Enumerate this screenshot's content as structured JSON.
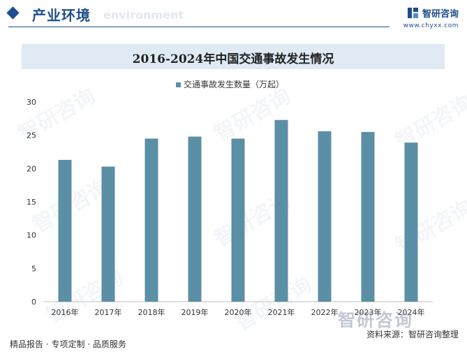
{
  "header": {
    "section_title": "产业环境",
    "section_subtitle": "environment",
    "brand_name": "智研咨询",
    "brand_url": "www.chyxx.com"
  },
  "watermark_text": "智研咨询",
  "footer": {
    "left_text": "精品报告 · 专项定制 · 品质服务",
    "source_text": "资料来源：智研咨询整理"
  },
  "colors": {
    "accent": "#1f4e8c",
    "bar": "#5b8fa6",
    "title_band": "#dfeaf5"
  },
  "chart_data": {
    "type": "bar",
    "title": "2016-2024年中国交通事故发生情况",
    "categories": [
      "2016年",
      "2017年",
      "2018年",
      "2019年",
      "2020年",
      "2021年",
      "2022年",
      "2023年",
      "2024年"
    ],
    "series": [
      {
        "name": "交通事故发生数量（万起）",
        "values": [
          21.3,
          20.3,
          24.5,
          24.8,
          24.5,
          27.3,
          25.6,
          25.5,
          23.9
        ]
      }
    ],
    "ylim": [
      0,
      30
    ],
    "yticks": [
      0,
      5,
      10,
      15,
      20,
      25,
      30
    ],
    "legend_position": "top-center",
    "grid": false
  }
}
